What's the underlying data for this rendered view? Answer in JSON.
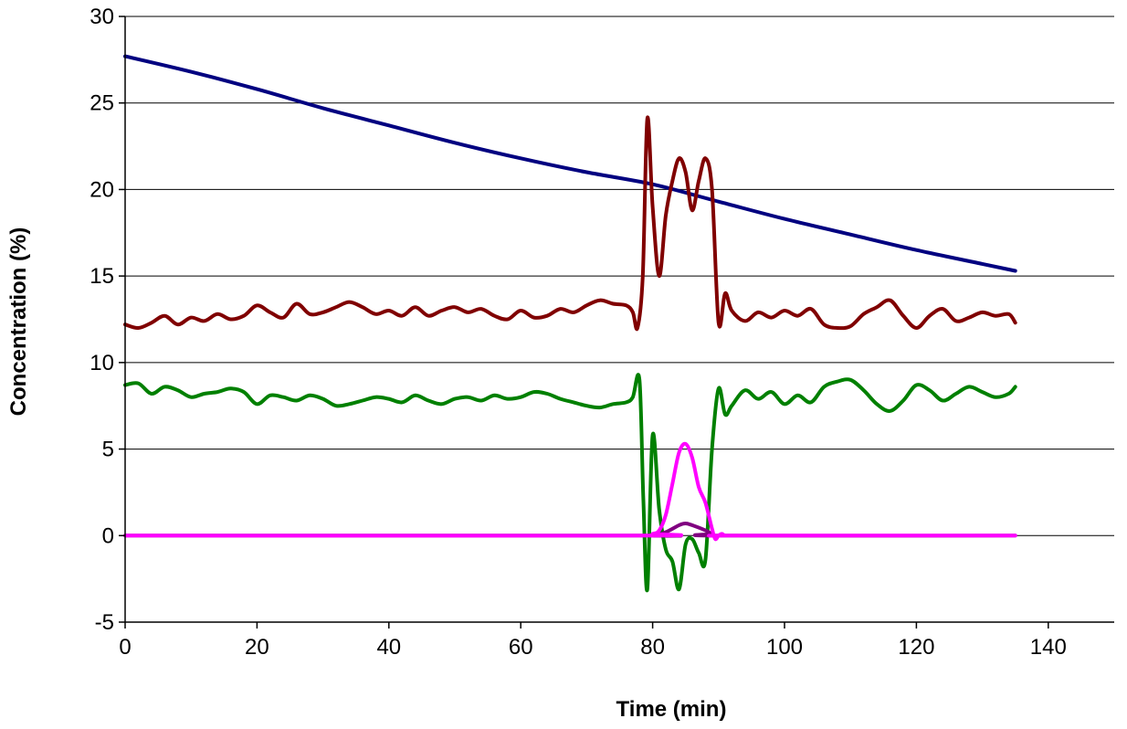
{
  "chart_data": {
    "type": "line",
    "title": "",
    "xlabel": "Time (min)",
    "ylabel": "Concentration (%)",
    "xlim": [
      0,
      150
    ],
    "ylim": [
      -5,
      30
    ],
    "xticks": [
      0,
      20,
      40,
      60,
      80,
      100,
      120,
      140
    ],
    "yticks": [
      -5,
      0,
      5,
      10,
      15,
      20,
      25,
      30
    ],
    "grid": "horizontal",
    "legend": "none",
    "series": [
      {
        "color": "#000080",
        "x": [
          0,
          10,
          20,
          30,
          40,
          50,
          60,
          70,
          80,
          90,
          100,
          110,
          120,
          130,
          135
        ],
        "y": [
          27.7,
          26.8,
          25.8,
          24.7,
          23.7,
          22.7,
          21.8,
          21.0,
          20.3,
          19.3,
          18.3,
          17.4,
          16.5,
          15.7,
          15.3
        ]
      },
      {
        "color": "#800000",
        "x": [
          0,
          2,
          4,
          6,
          8,
          10,
          12,
          14,
          16,
          18,
          20,
          22,
          24,
          26,
          28,
          30,
          32,
          34,
          36,
          38,
          40,
          42,
          44,
          46,
          48,
          50,
          52,
          54,
          56,
          58,
          60,
          62,
          64,
          66,
          68,
          70,
          72,
          74,
          76,
          77,
          77.7,
          78.5,
          79.2,
          80,
          81,
          82,
          83,
          84,
          85,
          86,
          87,
          88,
          89,
          90,
          91,
          92,
          94,
          96,
          98,
          100,
          102,
          104,
          106,
          108,
          110,
          112,
          114,
          116,
          118,
          120,
          122,
          124,
          126,
          128,
          130,
          132,
          134,
          135
        ],
        "y": [
          12.2,
          12.0,
          12.3,
          12.7,
          12.2,
          12.6,
          12.4,
          12.8,
          12.5,
          12.7,
          13.3,
          12.9,
          12.6,
          13.4,
          12.8,
          12.9,
          13.2,
          13.5,
          13.2,
          12.8,
          13.0,
          12.7,
          13.2,
          12.7,
          13.0,
          13.2,
          12.9,
          13.1,
          12.7,
          12.5,
          13.0,
          12.6,
          12.7,
          13.1,
          12.9,
          13.3,
          13.6,
          13.4,
          13.3,
          12.9,
          12.0,
          15.0,
          24.1,
          19.0,
          15.0,
          18.5,
          20.5,
          21.8,
          21.0,
          18.8,
          20.5,
          21.8,
          20.0,
          12.3,
          14.0,
          13.0,
          12.4,
          12.9,
          12.6,
          13.0,
          12.7,
          13.1,
          12.2,
          12.0,
          12.1,
          12.8,
          13.2,
          13.6,
          12.7,
          12.0,
          12.7,
          13.1,
          12.4,
          12.6,
          12.9,
          12.7,
          12.8,
          12.3
        ]
      },
      {
        "color": "#008000",
        "x": [
          0,
          2,
          4,
          6,
          8,
          10,
          12,
          14,
          16,
          18,
          20,
          22,
          24,
          26,
          28,
          30,
          32,
          34,
          36,
          38,
          40,
          42,
          44,
          46,
          48,
          50,
          52,
          54,
          56,
          58,
          60,
          62,
          64,
          66,
          68,
          70,
          72,
          74,
          76,
          77,
          78,
          78.6,
          79.2,
          80,
          81,
          82,
          83,
          84,
          85,
          86,
          87,
          88,
          89,
          90,
          91,
          92,
          94,
          96,
          98,
          100,
          102,
          104,
          106,
          108,
          110,
          112,
          114,
          116,
          118,
          120,
          122,
          124,
          126,
          128,
          130,
          132,
          134,
          135
        ],
        "y": [
          8.7,
          8.8,
          8.2,
          8.6,
          8.4,
          8.0,
          8.2,
          8.3,
          8.5,
          8.3,
          7.6,
          8.1,
          8.0,
          7.8,
          8.1,
          7.9,
          7.5,
          7.6,
          7.8,
          8.0,
          7.9,
          7.7,
          8.1,
          7.8,
          7.6,
          7.9,
          8.0,
          7.8,
          8.1,
          7.9,
          8.0,
          8.3,
          8.2,
          7.9,
          7.7,
          7.5,
          7.4,
          7.6,
          7.7,
          8.0,
          9.0,
          2.0,
          -3.1,
          5.8,
          1.5,
          -0.8,
          -1.5,
          -3.1,
          -0.5,
          -0.2,
          -1.0,
          -1.4,
          5.0,
          8.5,
          7.0,
          7.5,
          8.4,
          7.9,
          8.3,
          7.6,
          8.1,
          7.7,
          8.6,
          8.9,
          9.0,
          8.4,
          7.6,
          7.2,
          7.8,
          8.7,
          8.4,
          7.8,
          8.2,
          8.6,
          8.3,
          8.0,
          8.2,
          8.6
        ]
      },
      {
        "color": "#800080",
        "x": [
          0,
          78,
          80,
          82,
          84,
          85,
          86,
          88,
          89,
          90,
          135
        ],
        "y": [
          0,
          0,
          0,
          0.2,
          0.6,
          0.7,
          0.6,
          0.3,
          0.1,
          0,
          0
        ]
      },
      {
        "color": "#ff00ff",
        "x": [
          0,
          78,
          80,
          81,
          82,
          83,
          84,
          85,
          86,
          87,
          88,
          89,
          89.5,
          90,
          90.5,
          91,
          92,
          135
        ],
        "y": [
          0,
          0,
          0.1,
          0.3,
          1.2,
          3.0,
          4.8,
          5.3,
          4.5,
          2.8,
          1.9,
          0.4,
          -0.2,
          0,
          0.1,
          0,
          0,
          0
        ]
      }
    ]
  }
}
